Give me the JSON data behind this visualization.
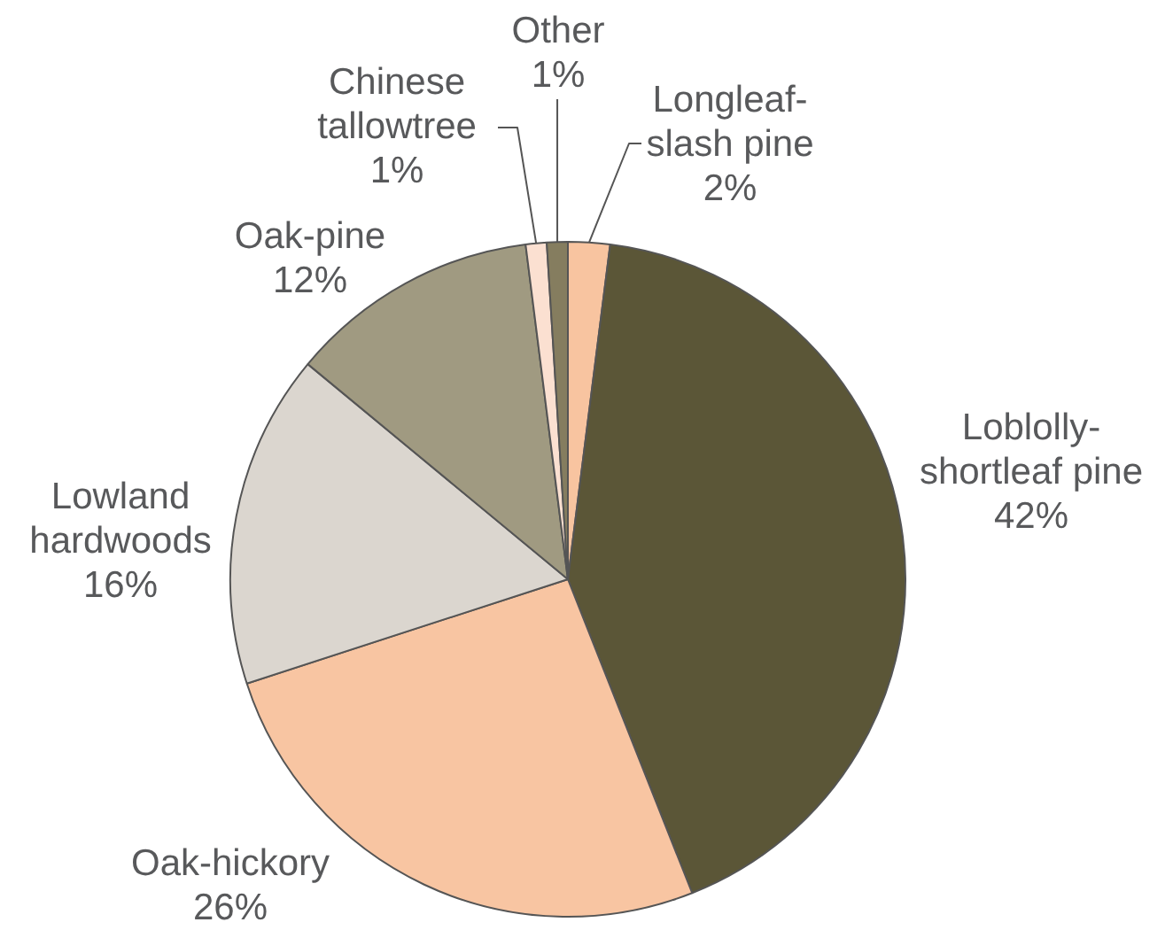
{
  "chart_data": {
    "type": "pie",
    "categories": [
      "Longleaf-slash pine",
      "Loblolly-shortleaf pine",
      "Oak-hickory",
      "Lowland hardwoods",
      "Oak-pine",
      "Chinese tallowtree",
      "Other"
    ],
    "values": [
      2,
      42,
      26,
      16,
      12,
      1,
      1
    ],
    "value_labels": [
      "2%",
      "42%",
      "26%",
      "16%",
      "12%",
      "1%",
      "1%"
    ],
    "colors": [
      "#f8c4a0",
      "#5b5637",
      "#f8c5a2",
      "#dbd6cf",
      "#a09a81",
      "#fbe0d1",
      "#857d5f"
    ],
    "legend": false
  }
}
